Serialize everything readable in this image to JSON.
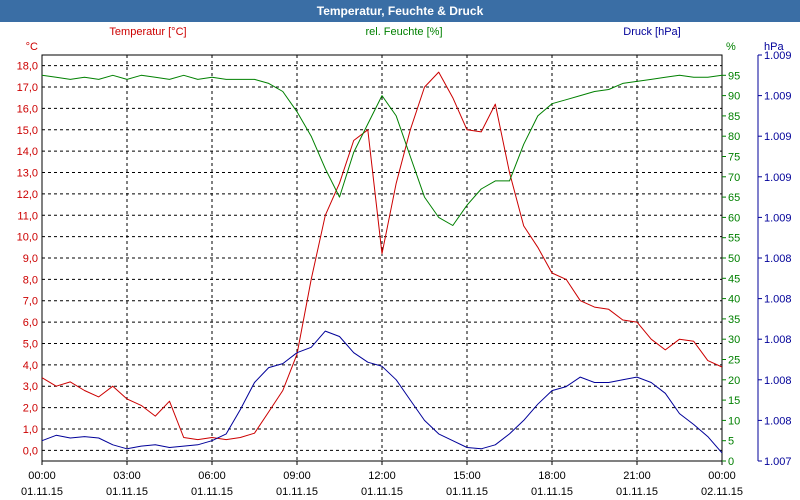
{
  "window": {
    "title": "Temperatur, Feuchte & Druck"
  },
  "colors": {
    "temperature": "#cc0000",
    "humidity": "#008000",
    "pressure": "#000099",
    "grid": "#000000",
    "title_bg": "#3a6ea5"
  },
  "chart_data": {
    "type": "line",
    "title": "Temperatur, Feuchte & Druck",
    "x": [
      0,
      0.5,
      1,
      1.5,
      2,
      2.5,
      3,
      3.5,
      4,
      4.5,
      5,
      5.5,
      6,
      6.5,
      7,
      7.5,
      8,
      8.5,
      9,
      9.5,
      10,
      10.5,
      11,
      11.5,
      12,
      12.5,
      13,
      13.5,
      14,
      14.5,
      15,
      15.5,
      16,
      16.5,
      17,
      17.5,
      18,
      18.5,
      19,
      19.5,
      20,
      20.5,
      21,
      21.5,
      22,
      22.5,
      23,
      23.5,
      24
    ],
    "xlim": [
      0,
      24
    ],
    "x_ticks": [
      {
        "time": "00:00",
        "date": "01.11.15"
      },
      {
        "time": "03:00",
        "date": "01.11.15"
      },
      {
        "time": "06:00",
        "date": "01.11.15"
      },
      {
        "time": "09:00",
        "date": "01.11.15"
      },
      {
        "time": "12:00",
        "date": "01.11.15"
      },
      {
        "time": "15:00",
        "date": "01.11.15"
      },
      {
        "time": "18:00",
        "date": "01.11.15"
      },
      {
        "time": "21:00",
        "date": "01.11.15"
      },
      {
        "time": "00:00",
        "date": "02.11.15"
      }
    ],
    "series": [
      {
        "name": "Temperatur [°C]",
        "axis": "left",
        "unit": "°C",
        "values": [
          3.4,
          3.0,
          3.2,
          2.8,
          2.5,
          3.0,
          2.4,
          2.1,
          1.6,
          2.3,
          0.6,
          0.5,
          0.6,
          0.5,
          0.6,
          0.8,
          1.8,
          2.8,
          4.5,
          8.0,
          11.0,
          12.5,
          14.5,
          15.0,
          9.2,
          12.5,
          15.0,
          17.0,
          17.7,
          16.5,
          15.0,
          14.9,
          16.2,
          13.0,
          10.5,
          9.5,
          8.3,
          8.0,
          7.0,
          6.7,
          6.6,
          6.1,
          6.0,
          5.2,
          4.7,
          5.2,
          5.1,
          4.2,
          3.9
        ]
      },
      {
        "name": "rel. Feuchte [%]",
        "axis": "right1",
        "unit": "%",
        "values": [
          95,
          94.5,
          94,
          94.5,
          94,
          95,
          94,
          95,
          94.5,
          94,
          95,
          94,
          94.5,
          94,
          94,
          94,
          93,
          91,
          86,
          80,
          72,
          65,
          76,
          83,
          90,
          85,
          75,
          65,
          60,
          58,
          63,
          67,
          69,
          69,
          78,
          85,
          88,
          89,
          90,
          91,
          91.5,
          93,
          93.5,
          94,
          94.5,
          95,
          94.5,
          94.5,
          95
        ]
      },
      {
        "name": "Druck [hPa]",
        "axis": "right2",
        "unit": "hPa",
        "values": [
          1007.15,
          1007.19,
          1007.17,
          1007.18,
          1007.17,
          1007.12,
          1007.09,
          1007.11,
          1007.12,
          1007.1,
          1007.11,
          1007.12,
          1007.15,
          1007.2,
          1007.38,
          1007.58,
          1007.69,
          1007.72,
          1007.8,
          1007.84,
          1007.96,
          1007.92,
          1007.8,
          1007.73,
          1007.7,
          1007.6,
          1007.45,
          1007.3,
          1007.2,
          1007.15,
          1007.1,
          1007.09,
          1007.12,
          1007.2,
          1007.3,
          1007.42,
          1007.52,
          1007.55,
          1007.62,
          1007.58,
          1007.58,
          1007.6,
          1007.62,
          1007.58,
          1007.5,
          1007.35,
          1007.27,
          1007.18,
          1007.06
        ]
      }
    ],
    "axes": {
      "left": {
        "label": "°C",
        "ylim": [
          -0.5,
          18.5
        ],
        "ticks": [
          "0,0",
          "1,0",
          "2,0",
          "3,0",
          "4,0",
          "5,0",
          "6,0",
          "7,0",
          "8,0",
          "9,0",
          "10,0",
          "11,0",
          "12,0",
          "13,0",
          "14,0",
          "15,0",
          "16,0",
          "17,0",
          "18,0"
        ]
      },
      "right1": {
        "label": "%",
        "ylim": [
          0,
          100
        ],
        "ticks": [
          "0",
          "5",
          "10",
          "15",
          "20",
          "25",
          "30",
          "35",
          "40",
          "45",
          "50",
          "55",
          "60",
          "65",
          "70",
          "75",
          "80",
          "85",
          "90",
          "95"
        ]
      },
      "right2": {
        "label": "hPa",
        "ylim": [
          1007.0,
          1010.0
        ],
        "ticks": [
          "1.007",
          "1.008",
          "1.008",
          "1.008",
          "1.008",
          "1.008",
          "1.009",
          "1.009",
          "1.009",
          "1.009",
          "1.009"
        ]
      }
    },
    "legend": [
      "Temperatur [°C]",
      "rel. Feuchte [%]",
      "Druck [hPa]"
    ],
    "grid": true
  }
}
